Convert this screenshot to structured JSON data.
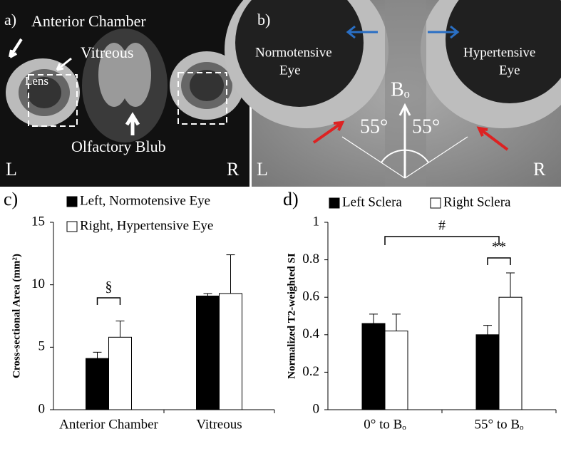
{
  "panels": [
    {
      "label": "a)",
      "annotations": [
        "Anterior Chamber",
        "Vitreous",
        "Lens",
        "Olfactory Blub"
      ],
      "left": "L",
      "right": "R"
    },
    {
      "label": "b)",
      "left_eye": [
        "Normotensive",
        "Eye"
      ],
      "right_eye": [
        "Hypertensive",
        "Eye"
      ],
      "field": "Bₒ",
      "angles": [
        "55°",
        "55°"
      ],
      "left": "L",
      "right": "R"
    }
  ],
  "chart_data": [
    {
      "type": "bar",
      "panel_label": "c)",
      "y_label": "Cross-sectional Area (mm²)",
      "categories": [
        "Anterior Chamber",
        "Vitreous"
      ],
      "series": [
        {
          "name": "Left, Normotensive Eye",
          "color": "#000000",
          "values": [
            4.1,
            9.1
          ],
          "errors": [
            0.5,
            0.2
          ]
        },
        {
          "name": "Right, Hypertensive Eye",
          "color": "#ffffff",
          "values": [
            5.8,
            9.3
          ],
          "errors": [
            1.3,
            3.1
          ]
        }
      ],
      "ylim": [
        0,
        15
      ],
      "yticks": [
        0,
        5,
        10,
        15
      ],
      "annotations": [
        "§"
      ]
    },
    {
      "type": "bar",
      "panel_label": "d)",
      "y_label": "Normalized T2-weighted SI",
      "categories": [
        "0° to Bₒ",
        "55° to Bₒ"
      ],
      "series": [
        {
          "name": "Left Sclera",
          "color": "#000000",
          "values": [
            0.46,
            0.4
          ],
          "errors": [
            0.05,
            0.05
          ]
        },
        {
          "name": "Right Sclera",
          "color": "#ffffff",
          "values": [
            0.42,
            0.6
          ],
          "errors": [
            0.09,
            0.13
          ]
        }
      ],
      "ylim": [
        0,
        1
      ],
      "yticks": [
        0,
        0.2,
        0.4,
        0.6,
        0.8,
        1
      ],
      "annotations": [
        "#",
        "**"
      ]
    }
  ]
}
